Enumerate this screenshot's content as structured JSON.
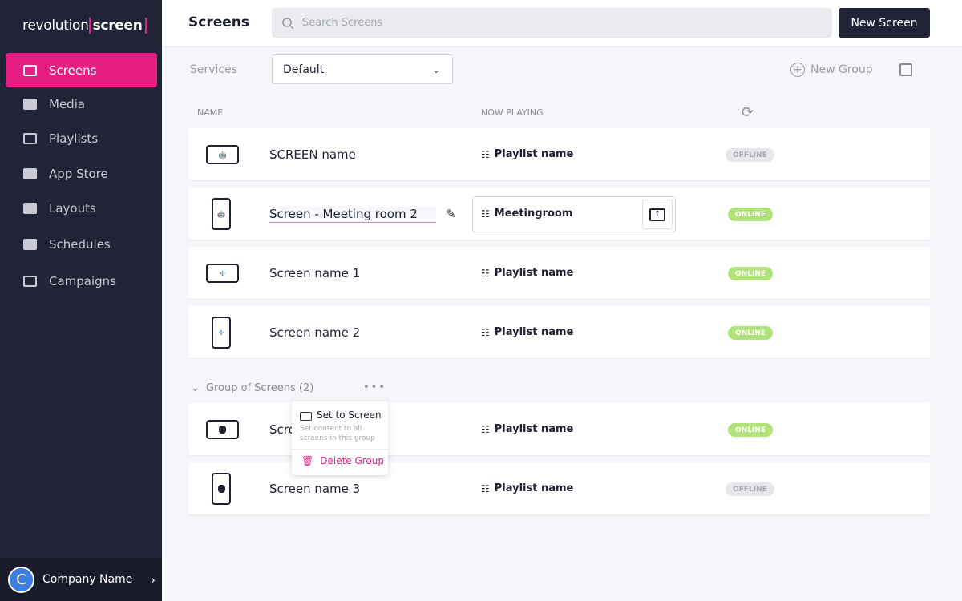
{
  "sidebar": {
    "logo": {
      "part1": "revolution",
      "part2": "screen"
    },
    "items": [
      {
        "label": "Screens",
        "icon": "tv-icon"
      },
      {
        "label": "Media",
        "icon": "folder-icon"
      },
      {
        "label": "Playlists",
        "icon": "playlist-icon"
      },
      {
        "label": "App Store",
        "icon": "apps-icon"
      },
      {
        "label": "Layouts",
        "icon": "layout-icon"
      },
      {
        "label": "Schedules",
        "icon": "schedule-icon"
      },
      {
        "label": "Campaigns",
        "icon": "monitor-icon"
      }
    ],
    "account": {
      "initial": "C",
      "name": "Company Name"
    }
  },
  "header": {
    "title": "Screens",
    "search_placeholder": "Search Screens",
    "new_screen": "New Screen"
  },
  "toolbar": {
    "services_label": "Services",
    "services_value": "Default",
    "new_group": "New Group"
  },
  "columns": {
    "name": "NAME",
    "now_playing": "NOW PLAYING"
  },
  "screens": [
    {
      "name": "SCREEN name",
      "playlist": "Playlist name",
      "status": "OFFLINE",
      "device": "android",
      "orientation": "landscape"
    },
    {
      "name": "Screen - Meeting room 2",
      "playlist": "Meetingroom",
      "status": "ONLINE",
      "device": "android",
      "orientation": "portrait"
    },
    {
      "name": "Screen name 1",
      "playlist": "Playlist name",
      "status": "ONLINE",
      "device": "windmill",
      "orientation": "landscape"
    },
    {
      "name": "Screen name 2",
      "playlist": "Playlist name",
      "status": "ONLINE",
      "device": "windmill",
      "orientation": "portrait"
    }
  ],
  "group": {
    "label": "Group of Screens (2)",
    "screens": [
      {
        "name": "Scre",
        "playlist": "Playlist name",
        "status": "ONLINE",
        "device": "apple",
        "orientation": "landscape"
      },
      {
        "name": "Screen name 3",
        "playlist": "Playlist name",
        "status": "OFFLINE",
        "device": "apple",
        "orientation": "portrait"
      }
    ]
  },
  "context_menu": {
    "set_to_screen": "Set to Screen",
    "set_desc": "Set content to all screens in this group",
    "delete_group": "Delete Group"
  },
  "colors": {
    "accent": "#e61e84",
    "sidebar": "#212336",
    "online": "#b1e27a"
  }
}
